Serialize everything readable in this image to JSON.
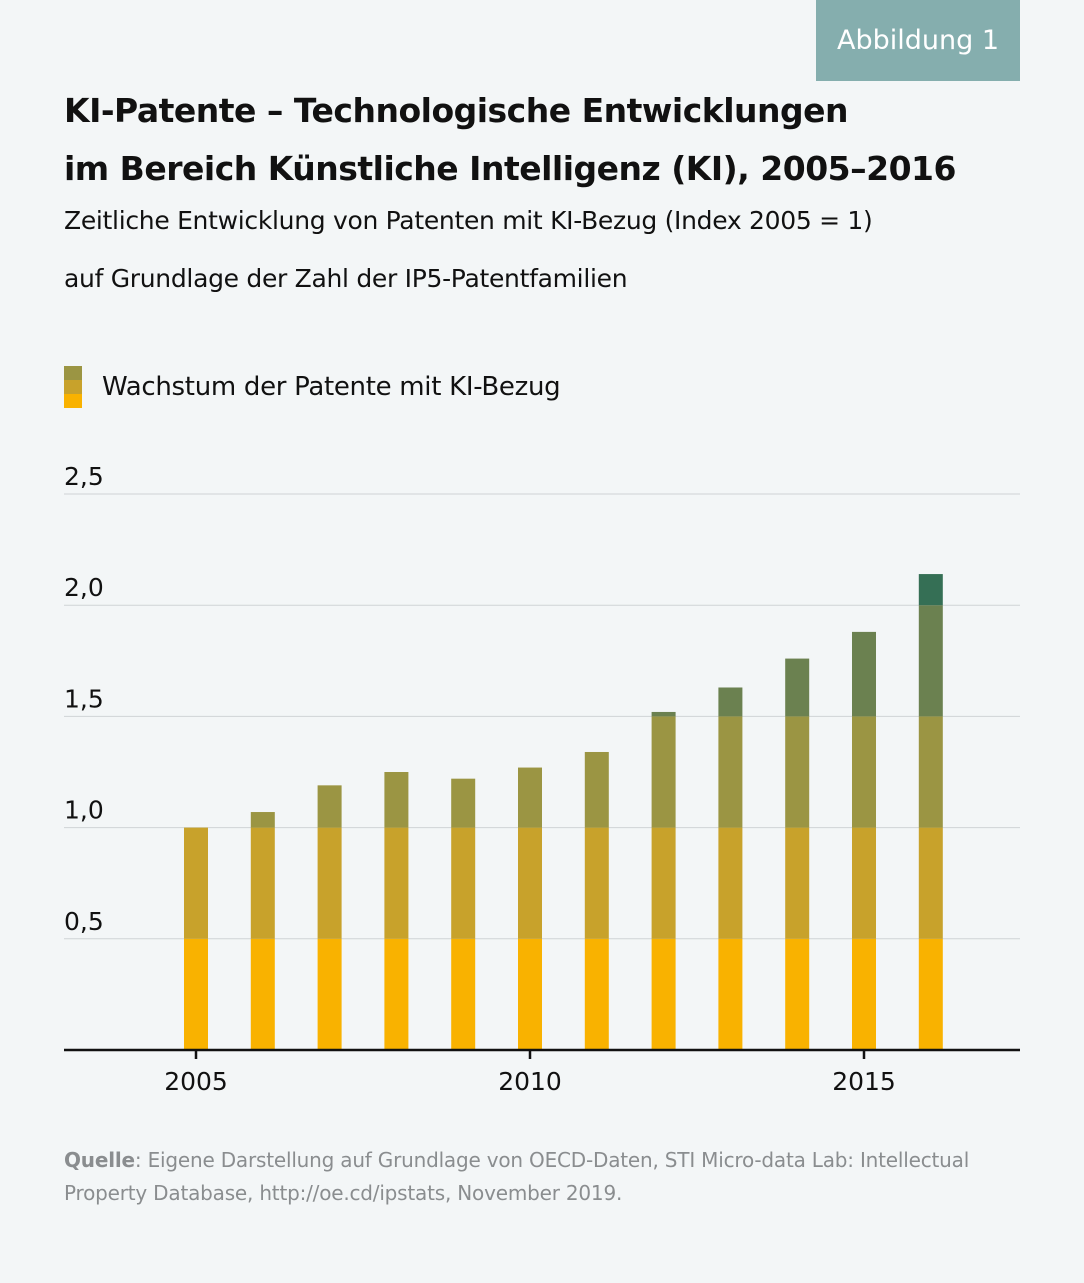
{
  "badge": "Abbildung 1",
  "title_line1": "KI-Patente – Technologische Entwicklungen",
  "title_line2": "im Bereich Künstliche Intelligenz (KI), 2005–2016",
  "subtitle_line1": "Zeitliche Entwicklung von Patenten mit KI-Bezug (Index 2005 = 1)",
  "subtitle_line2": "auf Grundlage der Zahl der IP5-Patentfamilien",
  "source_label": "Quelle",
  "source_text": ": Eigene Darstellung auf Grundlage von OECD-Daten, STI Micro-data Lab: Intellectual Property Database, http://oe.cd/ipstats, November 2019.",
  "chart_data": {
    "type": "bar",
    "series": [
      {
        "name": "Wachstum der Patente mit KI-Bezug",
        "values": [
          1.0,
          1.07,
          1.19,
          1.25,
          1.22,
          1.27,
          1.34,
          1.52,
          1.63,
          1.76,
          1.88,
          2.14
        ]
      }
    ],
    "categories": [
      2005,
      2006,
      2007,
      2008,
      2009,
      2010,
      2011,
      2012,
      2013,
      2014,
      2015,
      2016
    ],
    "xlim": [
      2003,
      2017.3
    ],
    "xticks": [
      "2005",
      "2010",
      "2015"
    ],
    "ylim": [
      0,
      2.5
    ],
    "yticks": [
      "0,5",
      "1,0",
      "1,5",
      "2,0",
      "2,5"
    ],
    "grid": true,
    "legend_position": "top-left",
    "band_colors": [
      "#f9b200",
      "#c8a22b",
      "#9b9543",
      "#6b8150",
      "#356f55"
    ]
  }
}
